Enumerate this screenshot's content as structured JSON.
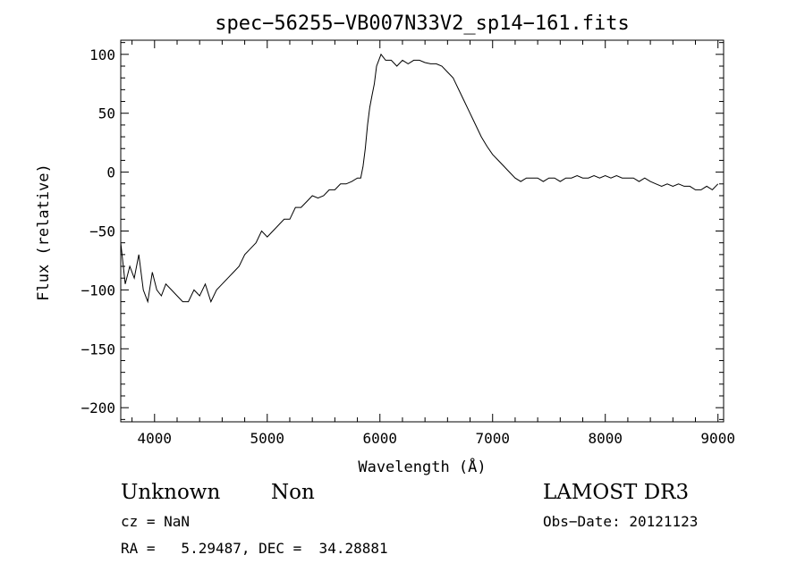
{
  "chart_data": {
    "type": "line",
    "title": "spec−56255−VB007N33V2_sp14−161.fits",
    "xlabel": "Wavelength (Å)",
    "ylabel": "Flux (relative)",
    "xlim": [
      3700,
      9050
    ],
    "ylim": [
      -212,
      112
    ],
    "xticks": [
      4000,
      5000,
      6000,
      7000,
      8000,
      9000
    ],
    "xtick_labels": [
      "4000",
      "5000",
      "6000",
      "7000",
      "8000",
      "9000"
    ],
    "yticks": [
      -200,
      -150,
      -100,
      -50,
      0,
      50,
      100
    ],
    "ytick_labels": [
      "−200",
      "−150",
      "−100",
      "−50",
      "0",
      "50",
      "100"
    ],
    "grid": false,
    "series": [
      {
        "x": [
          3700,
          3740,
          3780,
          3820,
          3860,
          3900,
          3940,
          3980,
          4020,
          4060,
          4100,
          4150,
          4200,
          4250,
          4300,
          4350,
          4400,
          4450,
          4500,
          4550,
          4600,
          4650,
          4700,
          4750,
          4800,
          4850,
          4900,
          4950,
          5000,
          5050,
          5100,
          5150,
          5200,
          5250,
          5300,
          5350,
          5400,
          5450,
          5500,
          5550,
          5600,
          5650,
          5700,
          5750,
          5800,
          5830,
          5850,
          5870,
          5890,
          5910,
          5930,
          5950,
          5970,
          5990,
          6010,
          6050,
          6100,
          6150,
          6200,
          6250,
          6300,
          6350,
          6400,
          6450,
          6500,
          6550,
          6600,
          6650,
          6700,
          6750,
          6800,
          6850,
          6900,
          6950,
          7000,
          7050,
          7100,
          7150,
          7200,
          7250,
          7300,
          7350,
          7400,
          7450,
          7500,
          7550,
          7600,
          7650,
          7700,
          7750,
          7800,
          7850,
          7900,
          7950,
          8000,
          8050,
          8100,
          8150,
          8200,
          8250,
          8300,
          8350,
          8400,
          8450,
          8500,
          8550,
          8600,
          8650,
          8700,
          8750,
          8800,
          8850,
          8900,
          8950,
          9000
        ],
        "y": [
          -60,
          -95,
          -80,
          -90,
          -70,
          -100,
          -110,
          -85,
          -100,
          -105,
          -95,
          -100,
          -105,
          -110,
          -110,
          -100,
          -105,
          -95,
          -110,
          -100,
          -95,
          -90,
          -85,
          -80,
          -70,
          -65,
          -60,
          -50,
          -55,
          -50,
          -45,
          -40,
          -40,
          -30,
          -30,
          -25,
          -20,
          -22,
          -20,
          -15,
          -15,
          -10,
          -10,
          -8,
          -5,
          -5,
          5,
          20,
          40,
          55,
          65,
          75,
          90,
          95,
          100,
          95,
          95,
          90,
          95,
          92,
          95,
          95,
          93,
          92,
          92,
          90,
          85,
          80,
          70,
          60,
          50,
          40,
          30,
          22,
          15,
          10,
          5,
          0,
          -5,
          -8,
          -5,
          -5,
          -5,
          -8,
          -5,
          -5,
          -8,
          -5,
          -5,
          -3,
          -5,
          -5,
          -3,
          -5,
          -3,
          -5,
          -3,
          -5,
          -5,
          -5,
          -8,
          -5,
          -8,
          -10,
          -12,
          -10,
          -12,
          -10,
          -12,
          -12,
          -15,
          -15,
          -12,
          -15,
          -10
        ]
      }
    ]
  },
  "info": {
    "object_type": "Unknown",
    "object_subtype": "Non",
    "survey": "LAMOST DR3",
    "cz": "cz = NaN",
    "obs_date": "Obs−Date: 20121123",
    "radec": "RA =   5.29487, DEC =  34.28881"
  }
}
